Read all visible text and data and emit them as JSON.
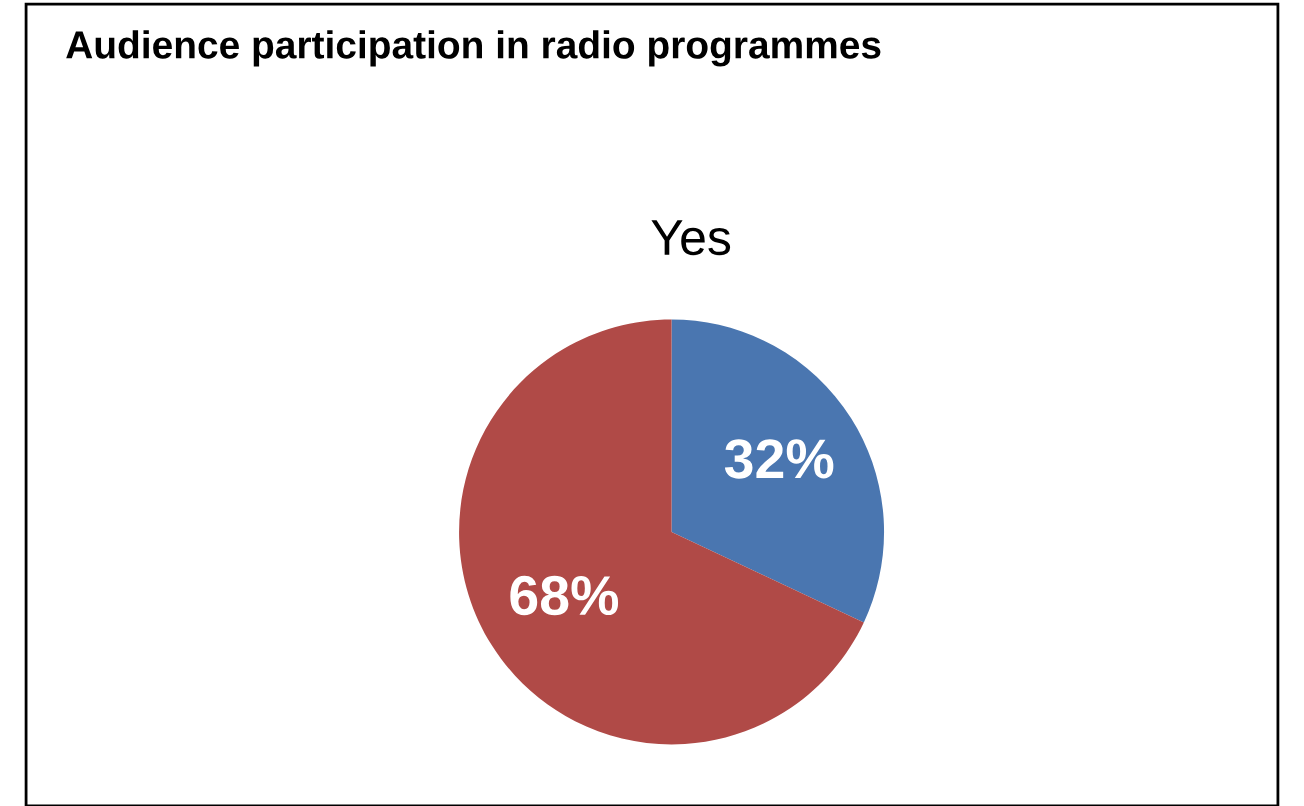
{
  "chart_data": {
    "type": "pie",
    "title": "Audience participation in radio programmes",
    "subtitle": "Yes",
    "categories": [
      null,
      null
    ],
    "values": [
      32,
      68
    ],
    "colors": [
      "#4a76b0",
      "#b04a47"
    ],
    "value_labels": [
      "32%",
      "68%"
    ],
    "legend": false
  }
}
